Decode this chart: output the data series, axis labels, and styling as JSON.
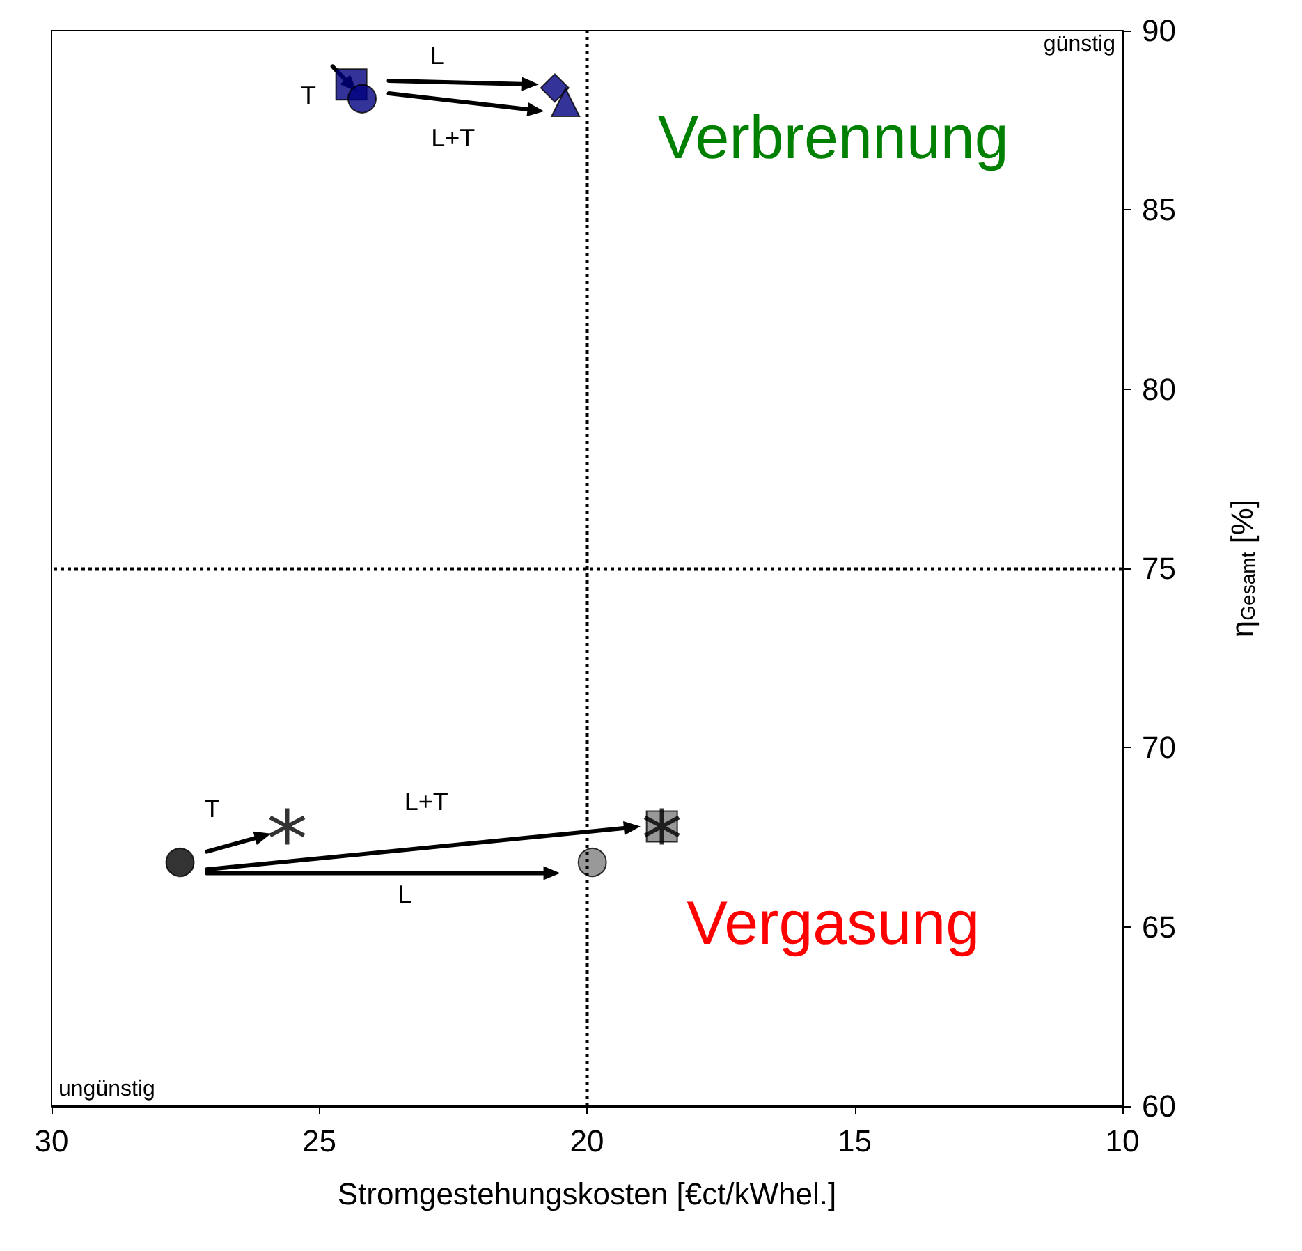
{
  "chart_data": {
    "type": "scatter",
    "xlabel": "Stromgestehungskosten [€ct/kWhel.]",
    "ylabel": "η$_{Gesamt}$ [%]",
    "xlim": [
      30,
      10
    ],
    "xticks": [
      30,
      25,
      20,
      15,
      10
    ],
    "ylim": [
      60,
      90
    ],
    "yticks": [
      60,
      65,
      70,
      75,
      80,
      85,
      90
    ],
    "grid": false,
    "series": [
      {
        "marker": "square",
        "color": "#000080",
        "x": [
          24.4
        ],
        "values": [
          88.5
        ]
      },
      {
        "marker": "circle",
        "color": "#000080",
        "x": [
          24.2
        ],
        "values": [
          88.1
        ]
      },
      {
        "marker": "diamond",
        "color": "#000080",
        "x": [
          20.6
        ],
        "values": [
          88.4
        ]
      },
      {
        "marker": "triangle",
        "color": "#000080",
        "x": [
          20.4
        ],
        "values": [
          88.0
        ]
      },
      {
        "marker": "circle",
        "color": "#000000",
        "x": [
          27.6
        ],
        "values": [
          66.8
        ]
      },
      {
        "marker": "cross",
        "color": "#000000",
        "x": [
          25.6
        ],
        "values": [
          67.8
        ]
      },
      {
        "marker": "circle",
        "color": "#808080",
        "x": [
          19.9
        ],
        "values": [
          66.8
        ]
      },
      {
        "marker": "square",
        "color": "#808080",
        "x": [
          18.6
        ],
        "values": [
          67.8
        ]
      },
      {
        "marker": "cross",
        "color": "#000000",
        "x": [
          18.6
        ],
        "values": [
          67.8
        ]
      }
    ],
    "ref_lines": [
      {
        "axis": "x",
        "value": 20,
        "color": "#000000",
        "line_style": "dotted"
      },
      {
        "axis": "y",
        "value": 75,
        "color": "#000000",
        "line_style": "dotted"
      }
    ],
    "annotations": [
      "günstig",
      "ungünstig",
      "Verbrennung",
      "Vergasung",
      "T",
      "L",
      "L+T",
      "T",
      "L+T",
      "L"
    ]
  }
}
